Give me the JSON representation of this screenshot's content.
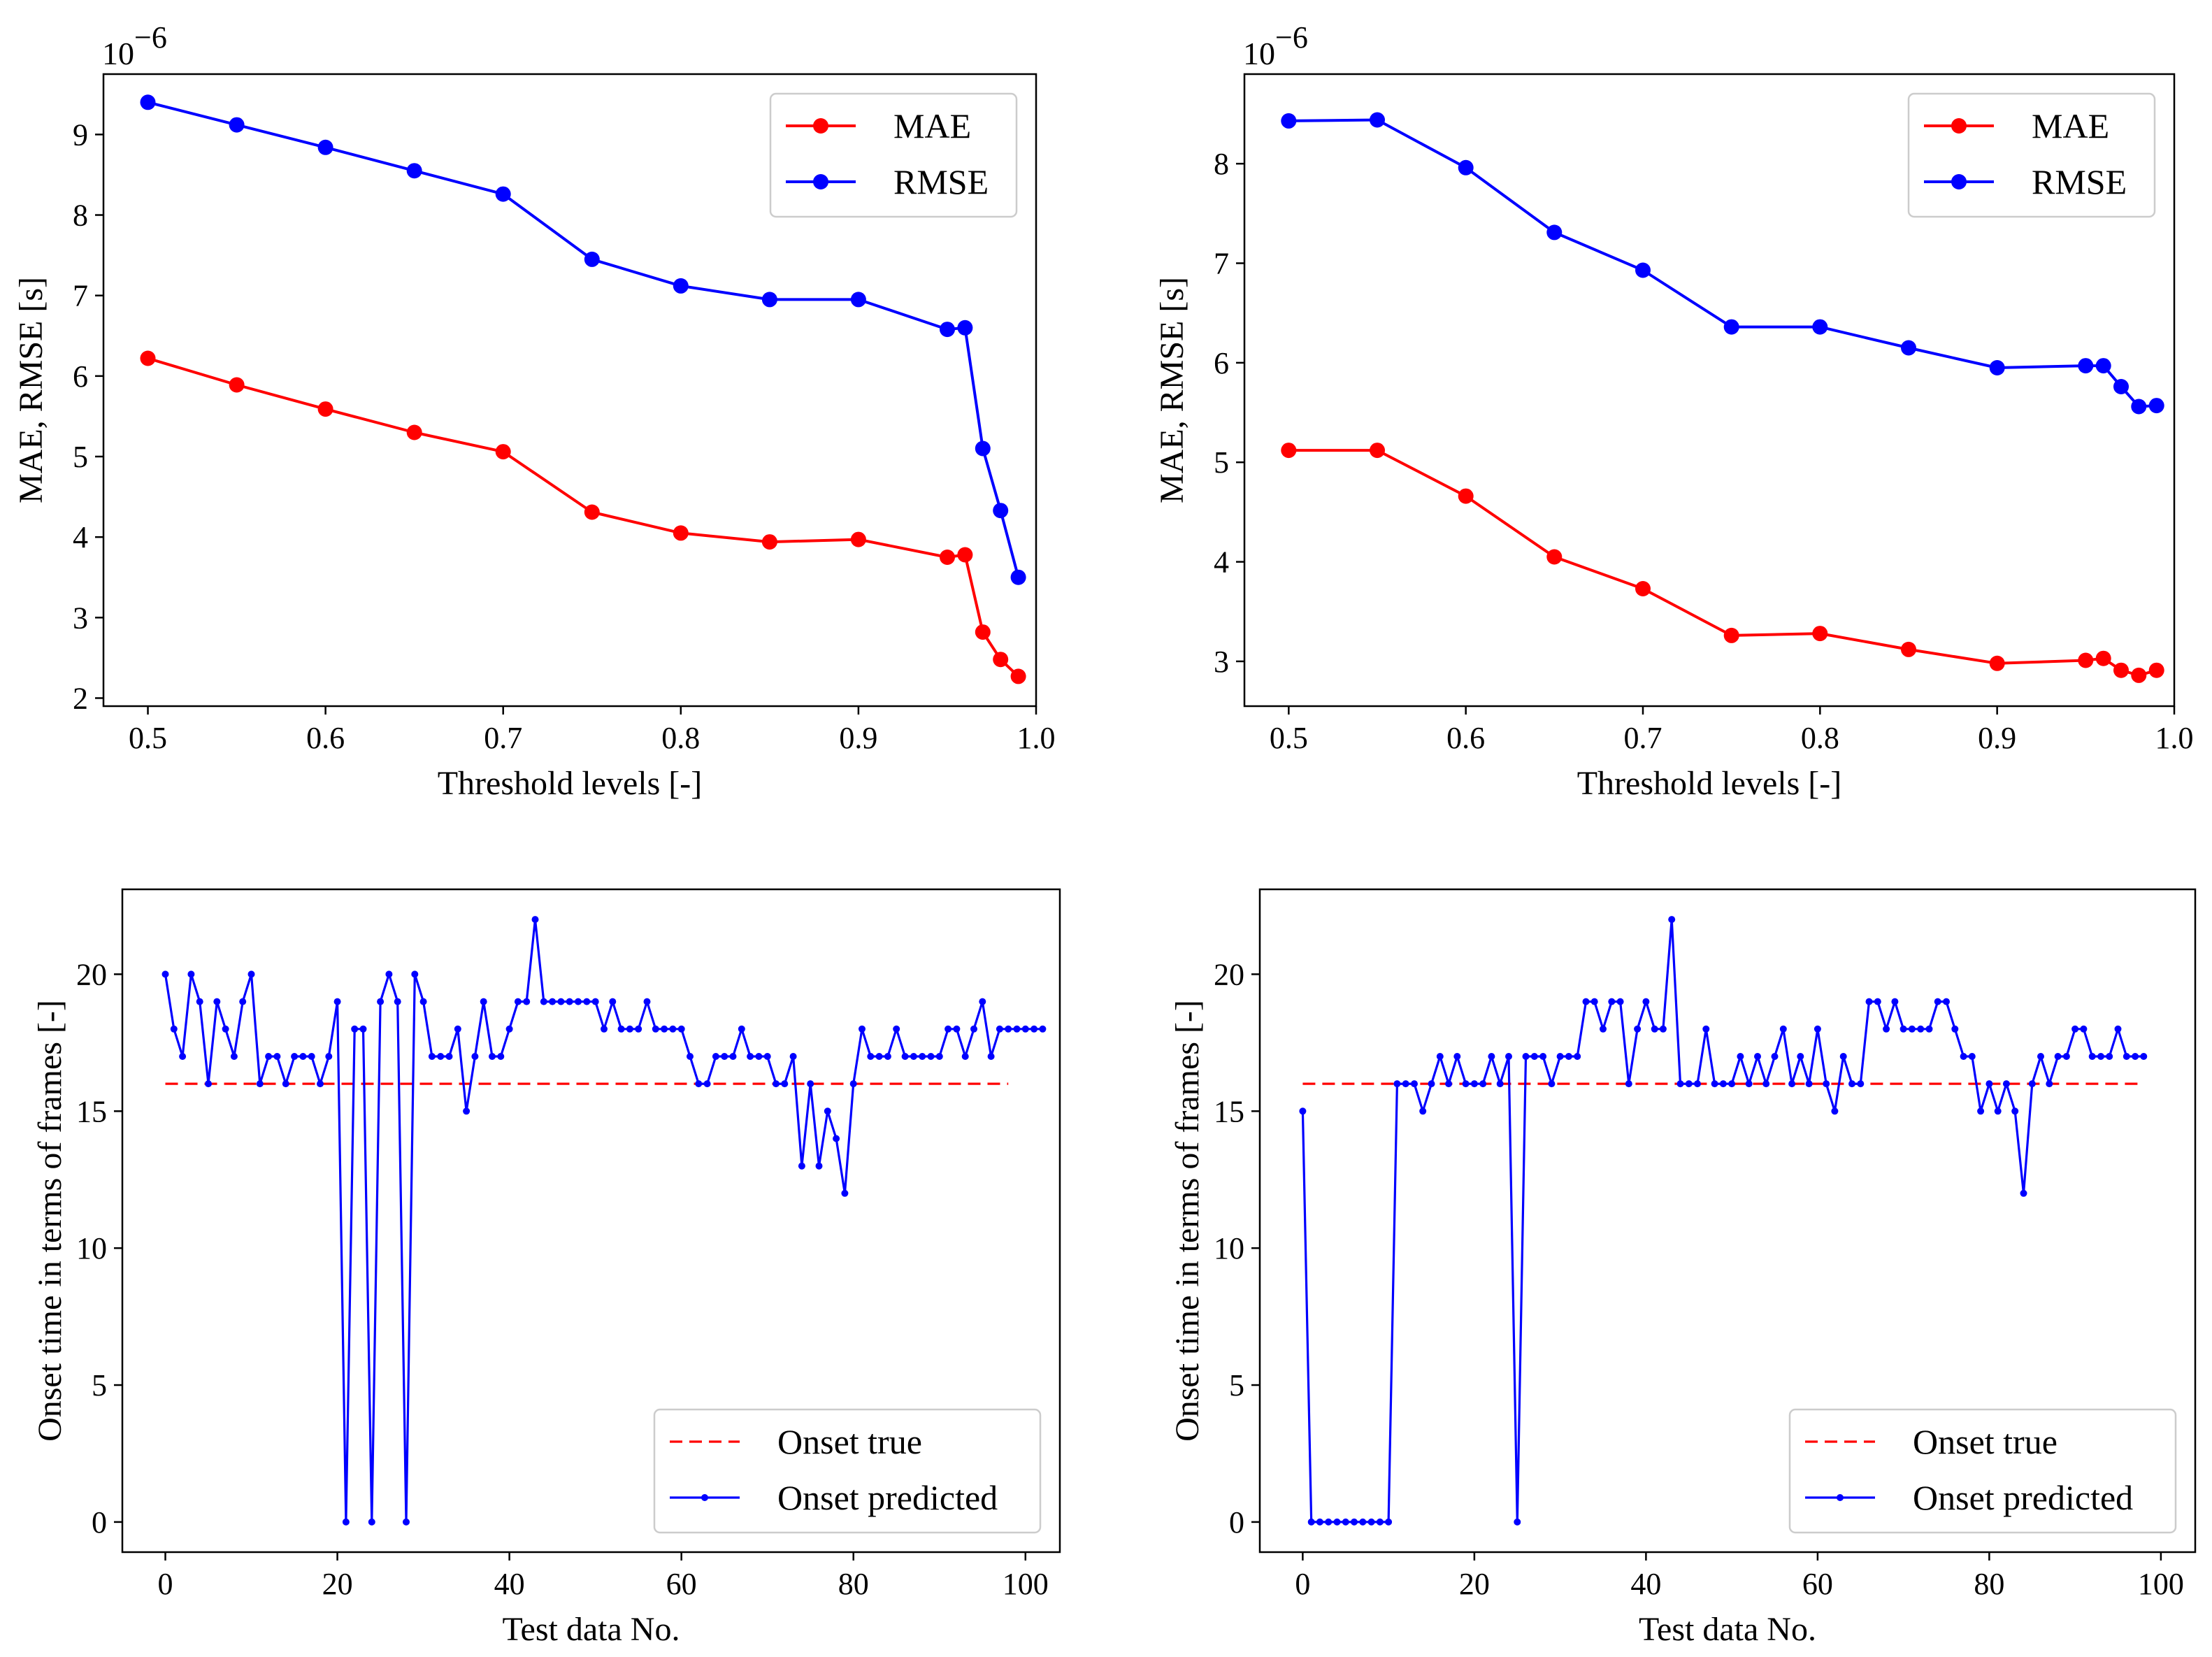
{
  "figure": {
    "colors": {
      "mae": "#ff0000",
      "rmse": "#0000ff",
      "onset_true": "#ff0000",
      "onset_predicted": "#0000ff"
    }
  },
  "chart_data": [
    {
      "id": "top-left",
      "type": "line",
      "title": "",
      "xlabel": "Threshold levels [-]",
      "ylabel": "MAE, RMSE [s]",
      "offset_label": "10",
      "offset_exp": "−6",
      "xlim": [
        0.475,
        1.0
      ],
      "ylim": [
        1.9,
        9.75
      ],
      "xticks": [
        0.5,
        0.6,
        0.7,
        0.8,
        0.9,
        1.0
      ],
      "xtick_labels": [
        "0.5",
        "0.6",
        "0.7",
        "0.8",
        "0.9",
        "1.0"
      ],
      "yticks": [
        2,
        3,
        4,
        5,
        6,
        7,
        8,
        9
      ],
      "ytick_labels": [
        "2",
        "3",
        "4",
        "5",
        "6",
        "7",
        "8",
        "9"
      ],
      "legend_position": "upper right",
      "x": [
        0.5,
        0.55,
        0.6,
        0.65,
        0.7,
        0.75,
        0.8,
        0.85,
        0.9,
        0.95,
        0.96,
        0.97,
        0.98,
        0.99
      ],
      "series": [
        {
          "name": "MAE",
          "color": "#ff0000",
          "style": "solid",
          "marker": "large",
          "values": [
            6.22,
            5.89,
            5.59,
            5.3,
            5.06,
            4.31,
            4.05,
            3.94,
            3.97,
            3.75,
            3.78,
            2.82,
            2.48,
            2.27
          ]
        },
        {
          "name": "RMSE",
          "color": "#0000ff",
          "style": "solid",
          "marker": "large",
          "values": [
            9.4,
            9.12,
            8.84,
            8.55,
            8.26,
            7.45,
            7.12,
            6.95,
            6.95,
            6.58,
            6.6,
            5.1,
            4.33,
            3.5
          ]
        }
      ]
    },
    {
      "id": "top-right",
      "type": "line",
      "title": "",
      "xlabel": "Threshold levels [-]",
      "ylabel": "MAE, RMSE [s]",
      "offset_label": "10",
      "offset_exp": "−6",
      "xlim": [
        0.475,
        1.0
      ],
      "ylim": [
        2.55,
        8.9
      ],
      "xticks": [
        0.5,
        0.6,
        0.7,
        0.8,
        0.9,
        1.0
      ],
      "xtick_labels": [
        "0.5",
        "0.6",
        "0.7",
        "0.8",
        "0.9",
        "1.0"
      ],
      "yticks": [
        3,
        4,
        5,
        6,
        7,
        8
      ],
      "ytick_labels": [
        "3",
        "4",
        "5",
        "6",
        "7",
        "8"
      ],
      "legend_position": "upper right",
      "x": [
        0.5,
        0.55,
        0.6,
        0.65,
        0.7,
        0.75,
        0.8,
        0.85,
        0.9,
        0.95,
        0.96,
        0.97,
        0.98,
        0.99
      ],
      "series": [
        {
          "name": "MAE",
          "color": "#ff0000",
          "style": "solid",
          "marker": "large",
          "values": [
            5.12,
            5.12,
            4.66,
            4.05,
            3.73,
            3.26,
            3.28,
            3.12,
            2.98,
            3.01,
            3.03,
            2.91,
            2.86,
            2.91
          ]
        },
        {
          "name": "RMSE",
          "color": "#0000ff",
          "style": "solid",
          "marker": "large",
          "values": [
            8.43,
            8.44,
            7.96,
            7.31,
            6.93,
            6.36,
            6.36,
            6.15,
            5.95,
            5.97,
            5.97,
            5.76,
            5.56,
            5.57
          ]
        }
      ]
    },
    {
      "id": "bottom-left",
      "type": "line",
      "title": "",
      "xlabel": "Test data No.",
      "ylabel": "Onset time in terms of frames [-]",
      "xlim": [
        -5,
        104
      ],
      "ylim": [
        -1.1,
        23.1
      ],
      "xticks": [
        0,
        20,
        40,
        60,
        80,
        100
      ],
      "xtick_labels": [
        "0",
        "20",
        "40",
        "60",
        "80",
        "100"
      ],
      "yticks": [
        0,
        5,
        10,
        15,
        20
      ],
      "ytick_labels": [
        "0",
        "5",
        "10",
        "15",
        "20"
      ],
      "legend_position": "lower right",
      "series": [
        {
          "name": "Onset true",
          "color": "#ff0000",
          "style": "dashed",
          "marker": "none",
          "x": [
            0,
            98
          ],
          "values": [
            16,
            16
          ]
        },
        {
          "name": "Onset predicted",
          "color": "#0000ff",
          "style": "solid",
          "marker": "small",
          "values": [
            20,
            18,
            17,
            20,
            19,
            16,
            19,
            18,
            17,
            19,
            20,
            16,
            17,
            17,
            16,
            17,
            17,
            17,
            16,
            17,
            19,
            0,
            18,
            18,
            0,
            19,
            20,
            19,
            0,
            20,
            19,
            17,
            17,
            17,
            18,
            15,
            17,
            19,
            17,
            17,
            18,
            19,
            19,
            22,
            19,
            19,
            19,
            19,
            19,
            19,
            19,
            18,
            19,
            18,
            18,
            18,
            19,
            18,
            18,
            18,
            18,
            17,
            16,
            16,
            17,
            17,
            17,
            18,
            17,
            17,
            17,
            16,
            16,
            17,
            13,
            16,
            13,
            15,
            14,
            12,
            16,
            18,
            17,
            17,
            17,
            18,
            17,
            17,
            17,
            17,
            17,
            18,
            18,
            17,
            18,
            19,
            17,
            18,
            18,
            18,
            18,
            18,
            18
          ]
        }
      ]
    },
    {
      "id": "bottom-right",
      "type": "line",
      "title": "",
      "xlabel": "Test data No.",
      "ylabel": "Onset time in terms of frames [-]",
      "xlim": [
        -5,
        104
      ],
      "ylim": [
        -1.1,
        23.1
      ],
      "xticks": [
        0,
        20,
        40,
        60,
        80,
        100
      ],
      "xtick_labels": [
        "0",
        "20",
        "40",
        "60",
        "80",
        "100"
      ],
      "yticks": [
        0,
        5,
        10,
        15,
        20
      ],
      "ytick_labels": [
        "0",
        "5",
        "10",
        "15",
        "20"
      ],
      "legend_position": "lower right",
      "series": [
        {
          "name": "Onset true",
          "color": "#ff0000",
          "style": "dashed",
          "marker": "none",
          "x": [
            0,
            98
          ],
          "values": [
            16,
            16
          ]
        },
        {
          "name": "Onset predicted",
          "color": "#0000ff",
          "style": "solid",
          "marker": "small",
          "values": [
            15,
            0,
            0,
            0,
            0,
            0,
            0,
            0,
            0,
            0,
            0,
            16,
            16,
            16,
            15,
            16,
            17,
            16,
            17,
            16,
            16,
            16,
            17,
            16,
            17,
            0,
            17,
            17,
            17,
            16,
            17,
            17,
            17,
            19,
            19,
            18,
            19,
            19,
            16,
            18,
            19,
            18,
            18,
            22,
            16,
            16,
            16,
            18,
            16,
            16,
            16,
            17,
            16,
            17,
            16,
            17,
            18,
            16,
            17,
            16,
            18,
            16,
            15,
            17,
            16,
            16,
            19,
            19,
            18,
            19,
            18,
            18,
            18,
            18,
            19,
            19,
            18,
            17,
            17,
            15,
            16,
            15,
            16,
            15,
            12,
            16,
            17,
            16,
            17,
            17,
            18,
            18,
            17,
            17,
            17,
            18,
            17,
            17,
            17
          ]
        }
      ]
    }
  ]
}
